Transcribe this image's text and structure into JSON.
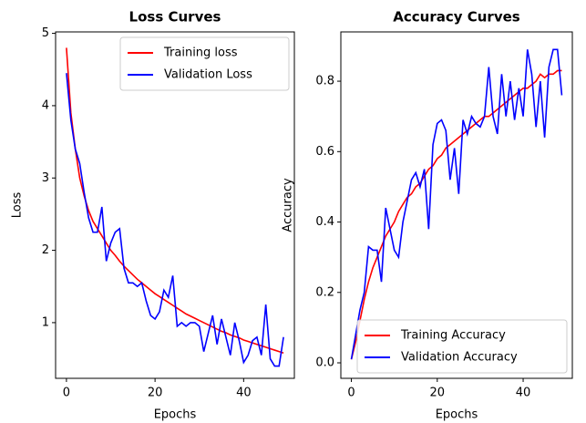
{
  "chart_data": [
    {
      "type": "line",
      "title": "Loss Curves",
      "xlabel": "Epochs",
      "ylabel": "Loss",
      "x": [
        0,
        1,
        2,
        3,
        4,
        5,
        6,
        7,
        8,
        9,
        10,
        11,
        12,
        13,
        14,
        15,
        16,
        17,
        18,
        19,
        20,
        21,
        22,
        23,
        24,
        25,
        26,
        27,
        28,
        29,
        30,
        31,
        32,
        33,
        34,
        35,
        36,
        37,
        38,
        39,
        40,
        41,
        42,
        43,
        44,
        45,
        46,
        47,
        48,
        49
      ],
      "series": [
        {
          "name": "Training loss",
          "color": "#ff0000",
          "values": [
            4.8,
            3.9,
            3.4,
            3.0,
            2.75,
            2.55,
            2.4,
            2.3,
            2.2,
            2.1,
            2.0,
            1.93,
            1.85,
            1.78,
            1.72,
            1.66,
            1.6,
            1.55,
            1.5,
            1.45,
            1.4,
            1.36,
            1.32,
            1.28,
            1.24,
            1.2,
            1.16,
            1.12,
            1.09,
            1.06,
            1.03,
            1.0,
            0.97,
            0.94,
            0.91,
            0.88,
            0.86,
            0.83,
            0.81,
            0.79,
            0.76,
            0.74,
            0.72,
            0.7,
            0.68,
            0.66,
            0.64,
            0.62,
            0.6,
            0.58
          ]
        },
        {
          "name": "Validation Loss",
          "color": "#0000ff",
          "values": [
            4.45,
            3.8,
            3.4,
            3.2,
            2.8,
            2.45,
            2.25,
            2.25,
            2.6,
            1.85,
            2.1,
            2.25,
            2.3,
            1.75,
            1.55,
            1.55,
            1.5,
            1.55,
            1.3,
            1.1,
            1.05,
            1.15,
            1.45,
            1.35,
            1.65,
            0.95,
            1.0,
            0.95,
            1.0,
            1.0,
            0.95,
            0.6,
            0.85,
            1.1,
            0.7,
            1.05,
            0.8,
            0.55,
            1.0,
            0.75,
            0.45,
            0.55,
            0.75,
            0.8,
            0.55,
            1.25,
            0.5,
            0.4,
            0.4,
            0.8
          ]
        }
      ],
      "xlim": [
        -2.45,
        51.45
      ],
      "xticks": [
        0,
        20,
        40
      ],
      "ylim": [
        0.23,
        5.02
      ],
      "yticks": [
        1,
        2,
        3,
        4,
        5
      ],
      "legend": "upper right"
    },
    {
      "type": "line",
      "title": "Accuracy Curves",
      "xlabel": "Epochs",
      "ylabel": "Accuracy",
      "x": [
        0,
        1,
        2,
        3,
        4,
        5,
        6,
        7,
        8,
        9,
        10,
        11,
        12,
        13,
        14,
        15,
        16,
        17,
        18,
        19,
        20,
        21,
        22,
        23,
        24,
        25,
        26,
        27,
        28,
        29,
        30,
        31,
        32,
        33,
        34,
        35,
        36,
        37,
        38,
        39,
        40,
        41,
        42,
        43,
        44,
        45,
        46,
        47,
        48,
        49
      ],
      "series": [
        {
          "name": "Training Accuracy",
          "color": "#ff0000",
          "values": [
            0.01,
            0.06,
            0.12,
            0.18,
            0.23,
            0.27,
            0.3,
            0.33,
            0.36,
            0.38,
            0.4,
            0.43,
            0.45,
            0.47,
            0.48,
            0.5,
            0.51,
            0.53,
            0.55,
            0.56,
            0.58,
            0.59,
            0.61,
            0.62,
            0.63,
            0.64,
            0.65,
            0.66,
            0.67,
            0.68,
            0.69,
            0.7,
            0.7,
            0.71,
            0.72,
            0.73,
            0.74,
            0.75,
            0.76,
            0.77,
            0.78,
            0.78,
            0.79,
            0.8,
            0.82,
            0.81,
            0.82,
            0.82,
            0.83,
            0.83
          ]
        },
        {
          "name": "Validation Accuracy",
          "color": "#0000ff",
          "values": [
            0.01,
            0.08,
            0.15,
            0.2,
            0.33,
            0.32,
            0.32,
            0.23,
            0.44,
            0.38,
            0.32,
            0.3,
            0.4,
            0.46,
            0.52,
            0.54,
            0.5,
            0.55,
            0.38,
            0.62,
            0.68,
            0.69,
            0.66,
            0.52,
            0.61,
            0.48,
            0.69,
            0.65,
            0.7,
            0.68,
            0.67,
            0.7,
            0.84,
            0.7,
            0.65,
            0.82,
            0.7,
            0.8,
            0.69,
            0.78,
            0.7,
            0.89,
            0.82,
            0.67,
            0.8,
            0.64,
            0.84,
            0.89,
            0.89,
            0.76
          ]
        }
      ],
      "xlim": [
        -2.45,
        51.45
      ],
      "xticks": [
        0,
        20,
        40
      ],
      "ylim": [
        -0.044,
        0.94
      ],
      "yticks": [
        {
          "value": 0,
          "label": "0.0"
        },
        0.2,
        0.4,
        0.6,
        0.8
      ],
      "legend": "lower right"
    }
  ]
}
